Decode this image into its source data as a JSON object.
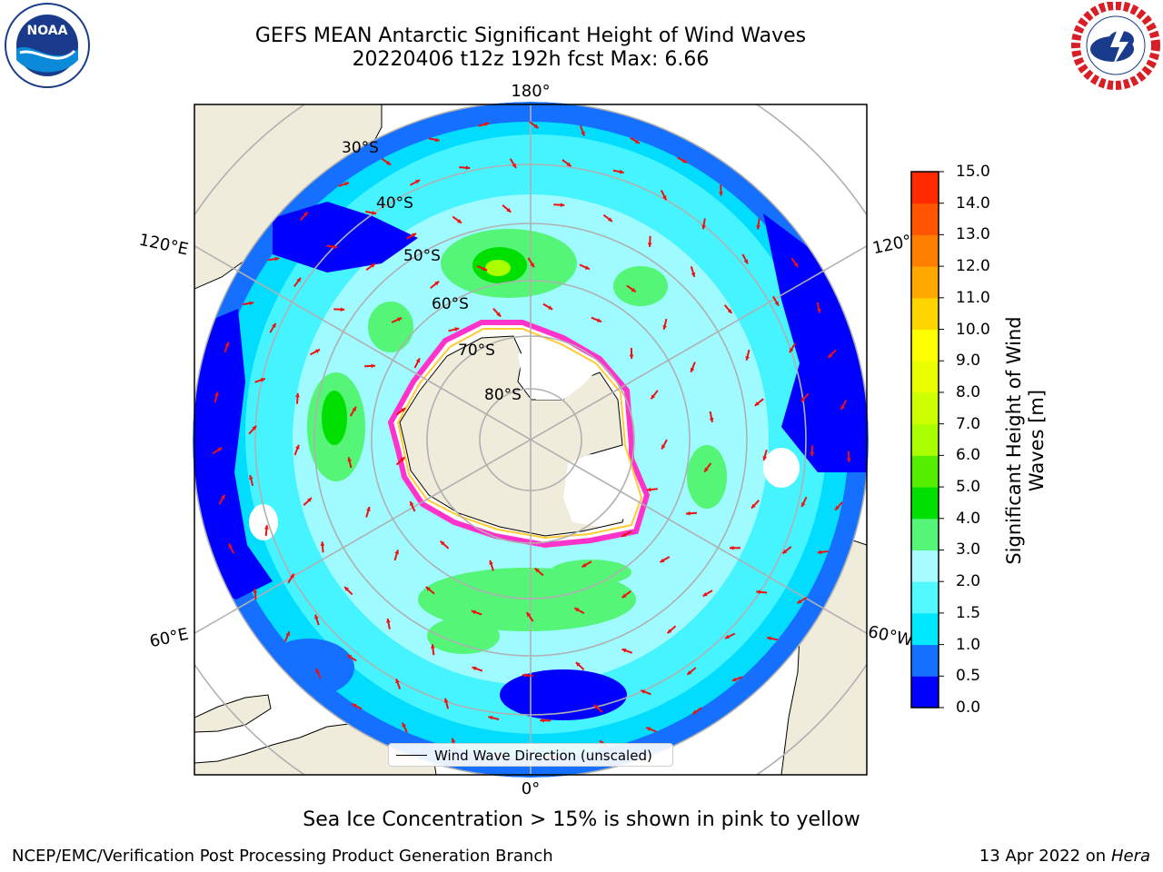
{
  "header": {
    "title_line1": "GEFS MEAN Antarctic Significant Height of Wind Waves",
    "title_line2": "20220406 t12z 192h fcst   Max: 6.66"
  },
  "logos": {
    "left": {
      "icon": "noaa-logo",
      "text": "NOAA",
      "ring_text": "NATIONAL OCEANIC AND ATMOSPHERIC ADMINISTRATION · U.S. DEPARTMENT OF COMMERCE"
    },
    "right": {
      "icon": "nws-logo",
      "ring_text": "NATIONAL WEATHER SERVICE"
    }
  },
  "map": {
    "projection": "south polar stereographic",
    "longitude_labels": {
      "top": "180°",
      "upper_left": "120°E",
      "upper_right": "120°",
      "lower_left": "60°E",
      "lower_right": "60°W",
      "bottom": "0°"
    },
    "latitude_labels": [
      "30°S",
      "40°S",
      "50°S",
      "60°S",
      "70°S",
      "80°S"
    ],
    "legend": "Wind Wave Direction (unscaled)",
    "colors": {
      "ocean_land": "#efecdc",
      "sea_ice": "#ffffff",
      "ice_edge": "#ff33cc",
      "arrows": "#ee1111",
      "grid": "#b0b0b0"
    }
  },
  "colorbar": {
    "label": "Significant Height of Wind Waves [m]",
    "ticks": [
      "0.0",
      "0.5",
      "1.0",
      "1.5",
      "2.0",
      "3.0",
      "4.0",
      "5.0",
      "6.0",
      "7.0",
      "8.0",
      "9.0",
      "10.0",
      "11.0",
      "12.0",
      "13.0",
      "14.0",
      "15.0"
    ],
    "colors": [
      "#0000ff",
      "#1670ff",
      "#00e8ff",
      "#52f8ff",
      "#a8fcff",
      "#55f577",
      "#00e000",
      "#55ee00",
      "#aaff00",
      "#ccff00",
      "#e9ff00",
      "#ffff00",
      "#ffd500",
      "#ffa800",
      "#ff8000",
      "#ff5500",
      "#ff2a00",
      "#ff0000"
    ]
  },
  "footer": {
    "note": "Sea Ice Concentration > 15% is shown in pink to yellow",
    "credit": "NCEP/EMC/Verification Post Processing Product Generation Branch",
    "date": "13 Apr 2022 on",
    "machine": "Hera"
  }
}
